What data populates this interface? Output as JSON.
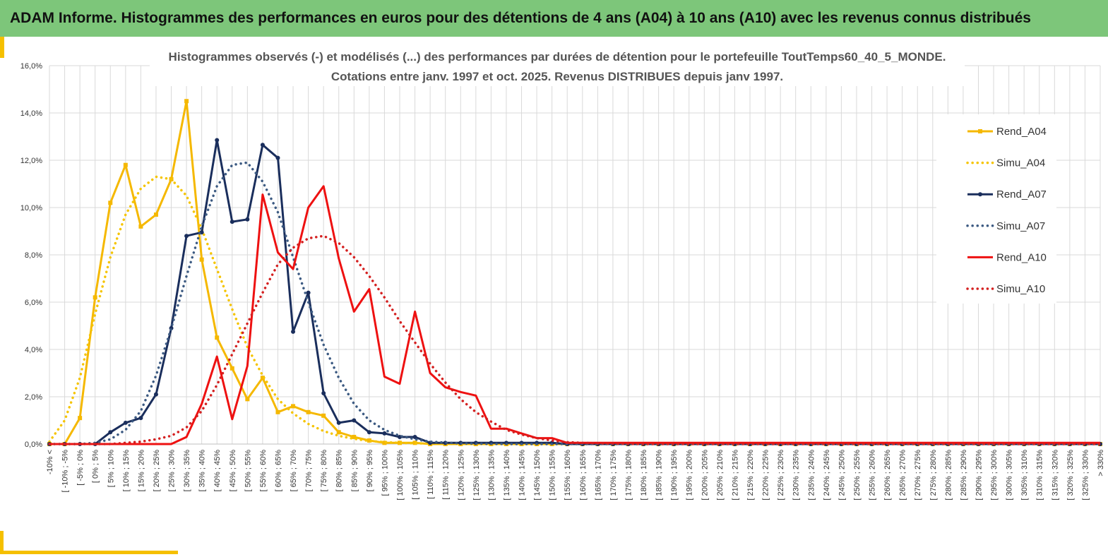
{
  "banner": {
    "title": "ADAM Informe. Histogrammes des performances en euros pour des détentions de 4 ans (A04) à 10 ans (A10) avec les revenus connus distribués"
  },
  "chart_data": {
    "type": "line",
    "title": [
      "Histogrammes observés (-) et modélisés (...) des performances par durées de détention pour  le portefeuille ToutTemps60_40_5_MONDE.",
      "Cotations entre janv. 1997 et oct. 2025. Revenus DISTRIBUES depuis janv 1997."
    ],
    "xlabel": "",
    "ylabel": "",
    "ylim": [
      0,
      16
    ],
    "yticks": [
      "0,0%",
      "2,0%",
      "4,0%",
      "6,0%",
      "8,0%",
      "10,0%",
      "12,0%",
      "14,0%",
      "16,0%"
    ],
    "grid": true,
    "legend_position": "right",
    "categories": [
      "-10% <",
      "[ -10% ; -5%",
      "[ -5% ; 0%",
      "[ 0% ; 5%",
      "[ 5% ; 10%",
      "[ 10% ; 15%",
      "[ 15% ; 20%",
      "[ 20% ; 25%",
      "[ 25% ; 30%",
      "[ 30% ; 35%",
      "[ 35% ; 40%",
      "[ 40% ; 45%",
      "[ 45% ; 50%",
      "[ 50% ; 55%",
      "[ 55% ; 60%",
      "[ 60% ; 65%",
      "[ 65% ; 70%",
      "[ 70% ; 75%",
      "[ 75% ; 80%",
      "[ 80% ; 85%",
      "[ 85% ; 90%",
      "[ 90% ; 95%",
      "[ 95% ; 100%",
      "[ 100% ; 105%",
      "[ 105% ; 110%",
      "[ 110% ; 115%",
      "[ 115% ; 120%",
      "[ 120% ; 125%",
      "[ 125% ; 130%",
      "[ 130% ; 135%",
      "[ 135% ; 140%",
      "[ 140% ; 145%",
      "[ 145% ; 150%",
      "[ 150% ; 155%",
      "[ 155% ; 160%",
      "[ 160% ; 165%",
      "[ 165% ; 170%",
      "[ 170% ; 175%",
      "[ 175% ; 180%",
      "[ 180% ; 185%",
      "[ 185% ; 190%",
      "[ 190% ; 195%",
      "[ 195% ; 200%",
      "[ 200% ; 205%",
      "[ 205% ; 210%",
      "[ 210% ; 215%",
      "[ 215% ; 220%",
      "[ 220% ; 225%",
      "[ 225% ; 230%",
      "[ 230% ; 235%",
      "[ 235% ; 240%",
      "[ 240% ; 245%",
      "[ 245% ; 250%",
      "[ 250% ; 255%",
      "[ 255% ; 260%",
      "[ 260% ; 265%",
      "[ 265% ; 270%",
      "[ 270% ; 275%",
      "[ 275% ; 280%",
      "[ 280% ; 285%",
      "[ 285% ; 290%",
      "[ 290% ; 295%",
      "[ 295% ; 300%",
      "[ 300% ; 305%",
      "[ 305% ; 310%",
      "[ 310% ; 315%",
      "[ 315% ; 320%",
      "[ 320% ; 325%",
      "[ 325% ; 330%",
      "> 330%"
    ],
    "series": [
      {
        "name": "Rend_A04",
        "color": "#f5b800",
        "style": "solid",
        "marker": "square",
        "values": [
          0,
          0,
          1.1,
          6.2,
          10.2,
          11.8,
          9.2,
          9.7,
          11.2,
          14.5,
          7.8,
          4.5,
          3.2,
          1.9,
          2.8,
          1.35,
          1.6,
          1.35,
          1.2,
          0.5,
          0.3,
          0.15,
          0.05,
          0.05,
          0.05,
          0,
          0,
          0,
          0,
          0,
          0,
          0,
          0,
          0,
          0,
          0,
          0,
          0,
          0,
          0,
          0,
          0,
          0,
          0,
          0,
          0,
          0,
          0,
          0,
          0,
          0,
          0,
          0,
          0,
          0,
          0,
          0,
          0,
          0,
          0,
          0,
          0,
          0,
          0,
          0,
          0,
          0,
          0,
          0,
          0
        ]
      },
      {
        "name": "Simu_A04",
        "color": "#f5c400",
        "style": "dotted",
        "marker": "none",
        "values": [
          0.1,
          1.0,
          2.8,
          5.5,
          7.9,
          9.7,
          10.8,
          11.3,
          11.2,
          10.5,
          9.1,
          7.4,
          5.7,
          4.1,
          2.9,
          1.9,
          1.3,
          0.85,
          0.55,
          0.35,
          0.22,
          0.13,
          0.08,
          0.05,
          0.03,
          0.02,
          0.01,
          0,
          0,
          0,
          0,
          0,
          0,
          0,
          0,
          0,
          0,
          0,
          0,
          0,
          0,
          0,
          0,
          0,
          0,
          0,
          0,
          0,
          0,
          0,
          0,
          0,
          0,
          0,
          0,
          0,
          0,
          0,
          0,
          0,
          0,
          0,
          0,
          0,
          0,
          0,
          0,
          0,
          0,
          0
        ]
      },
      {
        "name": "Rend_A07",
        "color": "#1a2e5c",
        "style": "solid",
        "marker": "circle",
        "values": [
          0,
          0,
          0,
          0,
          0.5,
          0.9,
          1.1,
          2.1,
          4.9,
          8.8,
          8.95,
          12.85,
          9.4,
          9.5,
          12.65,
          12.1,
          4.75,
          6.4,
          2.15,
          0.9,
          1.0,
          0.5,
          0.45,
          0.3,
          0.3,
          0.05,
          0.05,
          0.05,
          0.05,
          0.05,
          0.05,
          0.05,
          0.05,
          0.05,
          0,
          0,
          0,
          0,
          0,
          0,
          0,
          0,
          0,
          0,
          0,
          0,
          0,
          0,
          0,
          0,
          0,
          0,
          0,
          0,
          0,
          0,
          0,
          0,
          0,
          0,
          0,
          0,
          0,
          0,
          0,
          0,
          0,
          0,
          0,
          0
        ]
      },
      {
        "name": "Simu_A07",
        "color": "#3c5a82",
        "style": "dotted",
        "marker": "none",
        "values": [
          0,
          0,
          0,
          0.05,
          0.2,
          0.6,
          1.4,
          2.9,
          4.9,
          7.1,
          9.2,
          10.9,
          11.8,
          11.9,
          11.1,
          9.8,
          7.9,
          6.0,
          4.2,
          2.8,
          1.7,
          1.0,
          0.6,
          0.35,
          0.2,
          0.1,
          0.06,
          0.03,
          0.02,
          0.01,
          0,
          0,
          0,
          0,
          0,
          0,
          0,
          0,
          0,
          0,
          0,
          0,
          0,
          0,
          0,
          0,
          0,
          0,
          0,
          0,
          0,
          0,
          0,
          0,
          0,
          0,
          0,
          0,
          0,
          0,
          0,
          0,
          0,
          0,
          0,
          0,
          0,
          0,
          0,
          0
        ]
      },
      {
        "name": "Rend_A10",
        "color": "#ee1111",
        "style": "solid",
        "marker": "none",
        "values": [
          0,
          0,
          0,
          0,
          0,
          0,
          0,
          0,
          0,
          0.3,
          1.7,
          3.7,
          1.05,
          3.3,
          10.55,
          8.1,
          7.4,
          10.0,
          10.9,
          7.85,
          5.6,
          6.55,
          2.85,
          2.55,
          5.6,
          3.0,
          2.4,
          2.2,
          2.05,
          0.65,
          0.65,
          0.45,
          0.25,
          0.25,
          0.05,
          0.05,
          0.05,
          0.05,
          0.05,
          0.05,
          0.05,
          0.05,
          0.05,
          0.05,
          0.05,
          0.05,
          0.05,
          0.05,
          0.05,
          0.05,
          0.05,
          0.05,
          0.05,
          0.05,
          0.05,
          0.05,
          0.05,
          0.05,
          0.05,
          0.05,
          0.05,
          0.05,
          0.05,
          0.05,
          0.05,
          0.05,
          0.05,
          0.05,
          0.05,
          0.05
        ]
      },
      {
        "name": "Simu_A10",
        "color": "#d42020",
        "style": "dotted",
        "marker": "none",
        "values": [
          0,
          0,
          0,
          0,
          0,
          0.05,
          0.1,
          0.2,
          0.35,
          0.7,
          1.4,
          2.5,
          3.8,
          5.1,
          6.4,
          7.6,
          8.3,
          8.7,
          8.8,
          8.5,
          7.9,
          7.1,
          6.2,
          5.2,
          4.3,
          3.4,
          2.6,
          1.9,
          1.35,
          0.95,
          0.6,
          0.4,
          0.25,
          0.15,
          0.08,
          0.05,
          0.03,
          0.02,
          0.01,
          0,
          0,
          0,
          0,
          0,
          0,
          0,
          0,
          0,
          0,
          0,
          0,
          0,
          0,
          0,
          0,
          0,
          0,
          0,
          0,
          0,
          0,
          0,
          0,
          0,
          0,
          0,
          0,
          0,
          0,
          0
        ]
      }
    ]
  }
}
